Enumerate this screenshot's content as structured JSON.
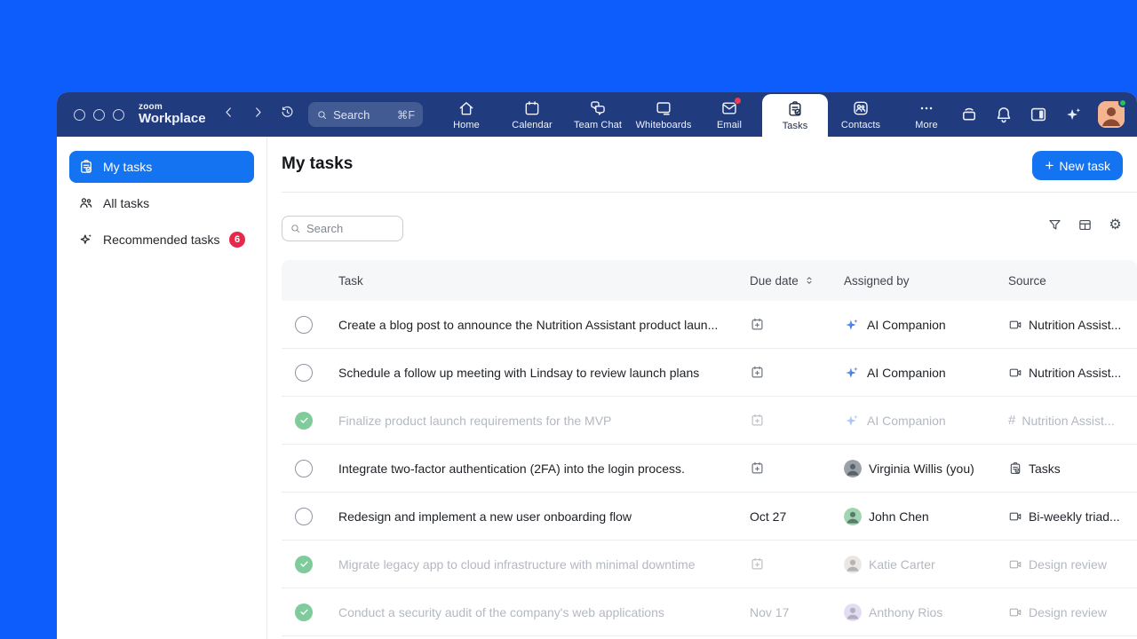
{
  "titlebar": {
    "logo_small": "zoom",
    "logo_text": "Workplace",
    "search": {
      "placeholder": "Search",
      "shortcut": "⌘F"
    },
    "nav": [
      {
        "label": "Home",
        "icon": "home-icon"
      },
      {
        "label": "Calendar",
        "icon": "calendar-icon"
      },
      {
        "label": "Team Chat",
        "icon": "team-chat-icon"
      },
      {
        "label": "Whiteboards",
        "icon": "whiteboard-icon"
      },
      {
        "label": "Email",
        "icon": "email-icon",
        "badge_dot": true
      },
      {
        "label": "Tasks",
        "icon": "tasks-icon",
        "active": true
      },
      {
        "label": "Contacts",
        "icon": "contacts-icon"
      },
      {
        "label": "More",
        "icon": "more-icon"
      }
    ]
  },
  "sidebar": {
    "items": [
      {
        "label": "My tasks",
        "icon": "my-tasks-icon",
        "active": true
      },
      {
        "label": "All tasks",
        "icon": "all-tasks-icon"
      },
      {
        "label": "Recommended tasks",
        "icon": "recommended-tasks-icon",
        "badge": "6"
      }
    ]
  },
  "main": {
    "title": "My tasks",
    "new_task_label": "New task",
    "new_task_plus": "+",
    "search_placeholder": "Search"
  },
  "table": {
    "columns": [
      "Task",
      "Due date",
      "Assigned by",
      "Source"
    ],
    "rows": [
      {
        "task": "Create a blog post to announce the Nutrition Assistant product laun...",
        "completed": false,
        "due": "",
        "assignee": {
          "type": "ai",
          "name": "AI Companion"
        },
        "source": {
          "icon": "video-icon",
          "label": "Nutrition Assist..."
        }
      },
      {
        "task": "Schedule a follow up meeting with Lindsay to review launch plans",
        "completed": false,
        "due": "",
        "assignee": {
          "type": "ai",
          "name": "AI Companion"
        },
        "source": {
          "icon": "video-icon",
          "label": "Nutrition Assist..."
        }
      },
      {
        "task": "Finalize product launch requirements for the MVP",
        "completed": true,
        "due": "",
        "assignee": {
          "type": "ai",
          "name": "AI Companion"
        },
        "source": {
          "icon": "hash-icon",
          "label": "Nutrition Assist..."
        }
      },
      {
        "task": "Integrate two-factor authentication (2FA) into the login process.",
        "completed": false,
        "due": "",
        "assignee": {
          "type": "person",
          "name": "Virginia Willis (you)",
          "avatar_color": "#9aa0a8"
        },
        "source": {
          "icon": "tasks-source-icon",
          "label": "Tasks"
        }
      },
      {
        "task": "Redesign and implement a new user onboarding flow",
        "completed": false,
        "due": "Oct 27",
        "assignee": {
          "type": "person",
          "name": "John Chen",
          "avatar_color": "#9fd6b1"
        },
        "source": {
          "icon": "video-icon",
          "label": "Bi-weekly triad..."
        }
      },
      {
        "task": "Migrate legacy app to cloud infrastructure with minimal downtime",
        "completed": true,
        "due": "",
        "assignee": {
          "type": "person",
          "name": "Katie Carter",
          "avatar_color": "#d9d2cb"
        },
        "source": {
          "icon": "video-icon",
          "label": "Design review"
        }
      },
      {
        "task": "Conduct a security audit of the company's web applications",
        "completed": true,
        "due": "Nov 17",
        "assignee": {
          "type": "person",
          "name": "Anthony Rios",
          "avatar_color": "#cfc0e8"
        },
        "source": {
          "icon": "video-icon",
          "label": "Design review"
        }
      }
    ]
  },
  "colors": {
    "desktop": "#0c5dfc",
    "titlebar": "#203c7f",
    "accent_blue": "#1473f0",
    "badge_red": "#e6294b",
    "done_green": "#7fcb9b"
  }
}
